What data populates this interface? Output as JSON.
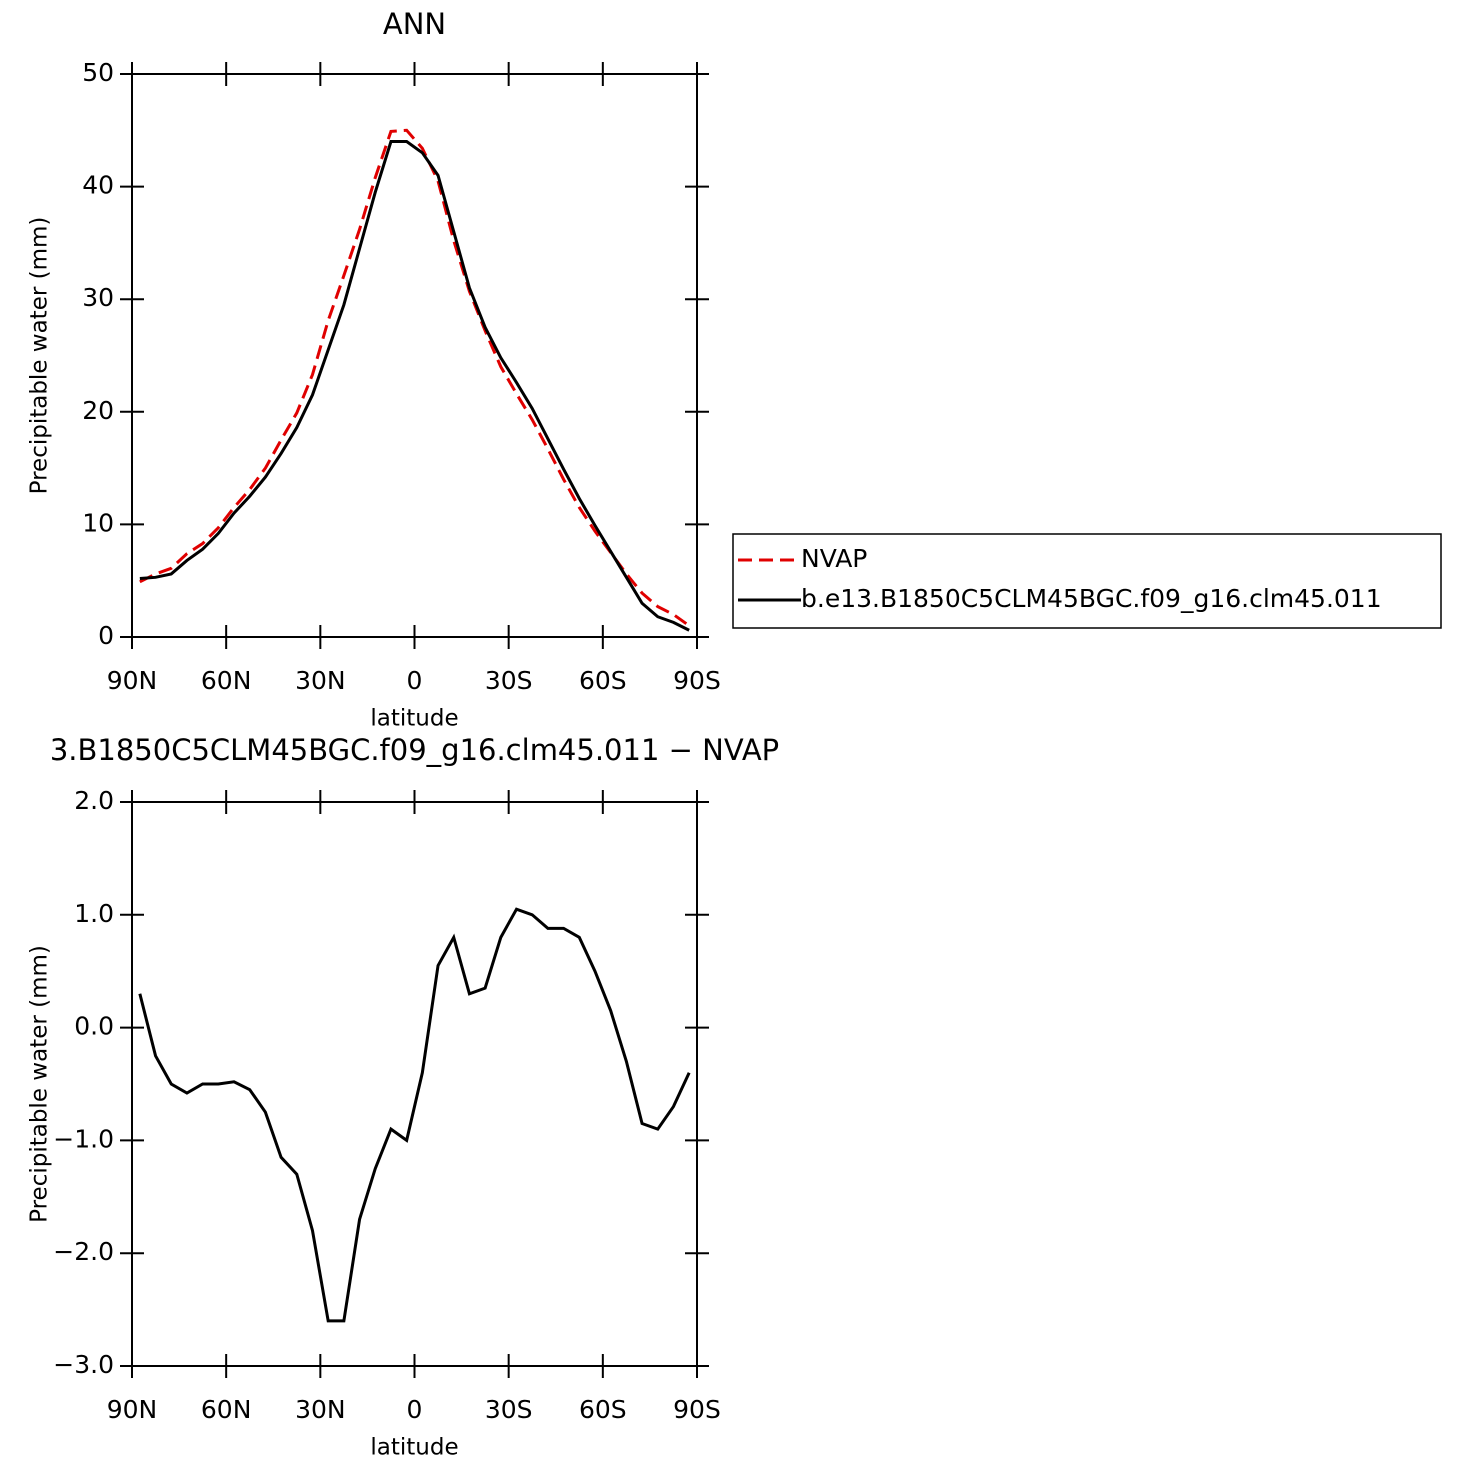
{
  "chart_data": [
    {
      "type": "line",
      "title": "ANN",
      "xlabel": "latitude",
      "ylabel": "Precipitable water (mm)",
      "x": [
        87.5,
        82.5,
        77.5,
        72.5,
        67.5,
        62.5,
        57.5,
        52.5,
        47.5,
        42.5,
        37.5,
        32.5,
        27.5,
        22.5,
        17.5,
        12.5,
        7.5,
        2.5,
        -2.5,
        -7.5,
        -12.5,
        -17.5,
        -22.5,
        -27.5,
        -32.5,
        -37.5,
        -42.5,
        -47.5,
        -52.5,
        -57.5,
        -62.5,
        -67.5,
        -72.5,
        -77.5,
        -82.5,
        -87.5
      ],
      "xlim": [
        90,
        -90
      ],
      "xticks": [
        {
          "value": 90,
          "label": "90N"
        },
        {
          "value": 60,
          "label": "60N"
        },
        {
          "value": 30,
          "label": "30N"
        },
        0,
        {
          "value": -30,
          "label": "30S"
        },
        {
          "value": -60,
          "label": "60S"
        },
        {
          "value": -90,
          "label": "90S"
        }
      ],
      "ylim": [
        0,
        50
      ],
      "yticks": [
        0,
        10,
        20,
        30,
        40,
        50
      ],
      "legend": "right",
      "series": [
        {
          "name": "NVAP",
          "color": "#e00000",
          "dash": "dashed",
          "values": [
            4.9,
            5.6,
            6.1,
            7.4,
            8.3,
            9.7,
            11.5,
            13.1,
            15.0,
            17.5,
            19.9,
            23.3,
            28.1,
            32.1,
            36.2,
            40.8,
            44.9,
            45.0,
            43.4,
            40.5,
            35.2,
            30.7,
            27.2,
            24.0,
            21.6,
            19.3,
            16.7,
            14.0,
            11.5,
            9.4,
            7.5,
            5.6,
            3.9,
            2.7,
            2.0,
            1.0
          ]
        },
        {
          "name": "b.e13.B1850C5CLM45BGC.f09_g16.clm45.011",
          "color": "#000000",
          "dash": "solid",
          "values": [
            5.2,
            5.3,
            5.6,
            6.8,
            7.8,
            9.2,
            11.0,
            12.5,
            14.2,
            16.3,
            18.6,
            21.5,
            25.5,
            29.5,
            34.5,
            39.5,
            44.0,
            44.0,
            43.0,
            41.0,
            36.0,
            31.0,
            27.5,
            24.8,
            22.6,
            20.3,
            17.6,
            14.9,
            12.3,
            9.9,
            7.6,
            5.3,
            3.0,
            1.8,
            1.3,
            0.6
          ]
        }
      ]
    },
    {
      "type": "line",
      "title": "3.B1850C5CLM45BGC.f09_g16.clm45.011 − NVAP",
      "xlabel": "latitude",
      "ylabel": "Precipitable water (mm)",
      "x": [
        87.5,
        82.5,
        77.5,
        72.5,
        67.5,
        62.5,
        57.5,
        52.5,
        47.5,
        42.5,
        37.5,
        32.5,
        27.5,
        22.5,
        17.5,
        12.5,
        7.5,
        2.5,
        -2.5,
        -7.5,
        -12.5,
        -17.5,
        -22.5,
        -27.5,
        -32.5,
        -37.5,
        -42.5,
        -47.5,
        -52.5,
        -57.5,
        -62.5,
        -67.5,
        -72.5,
        -77.5,
        -82.5,
        -87.5
      ],
      "xlim": [
        90,
        -90
      ],
      "xticks": [
        {
          "value": 90,
          "label": "90N"
        },
        {
          "value": 60,
          "label": "60N"
        },
        {
          "value": 30,
          "label": "30N"
        },
        0,
        {
          "value": -30,
          "label": "30S"
        },
        {
          "value": -60,
          "label": "60S"
        },
        {
          "value": -90,
          "label": "90S"
        }
      ],
      "ylim": [
        -3,
        2
      ],
      "yticks": [
        {
          "value": -3,
          "label": "−3.0"
        },
        {
          "value": -2,
          "label": "−2.0"
        },
        {
          "value": -1,
          "label": "−1.0"
        },
        {
          "value": 0,
          "label": "0.0"
        },
        {
          "value": 1,
          "label": "1.0"
        },
        {
          "value": 2,
          "label": "2.0"
        }
      ],
      "color": "#000000",
      "values": [
        0.3,
        -0.25,
        -0.5,
        -0.58,
        -0.5,
        -0.5,
        -0.48,
        -0.55,
        -0.75,
        -1.15,
        -1.3,
        -1.8,
        -2.6,
        -2.6,
        -1.7,
        -1.25,
        -0.9,
        -1.0,
        -0.4,
        0.55,
        0.8,
        0.3,
        0.35,
        0.8,
        1.05,
        1.0,
        0.88,
        0.88,
        0.8,
        0.5,
        0.15,
        -0.3,
        -0.85,
        -0.9,
        -0.7,
        -0.4
      ]
    }
  ]
}
